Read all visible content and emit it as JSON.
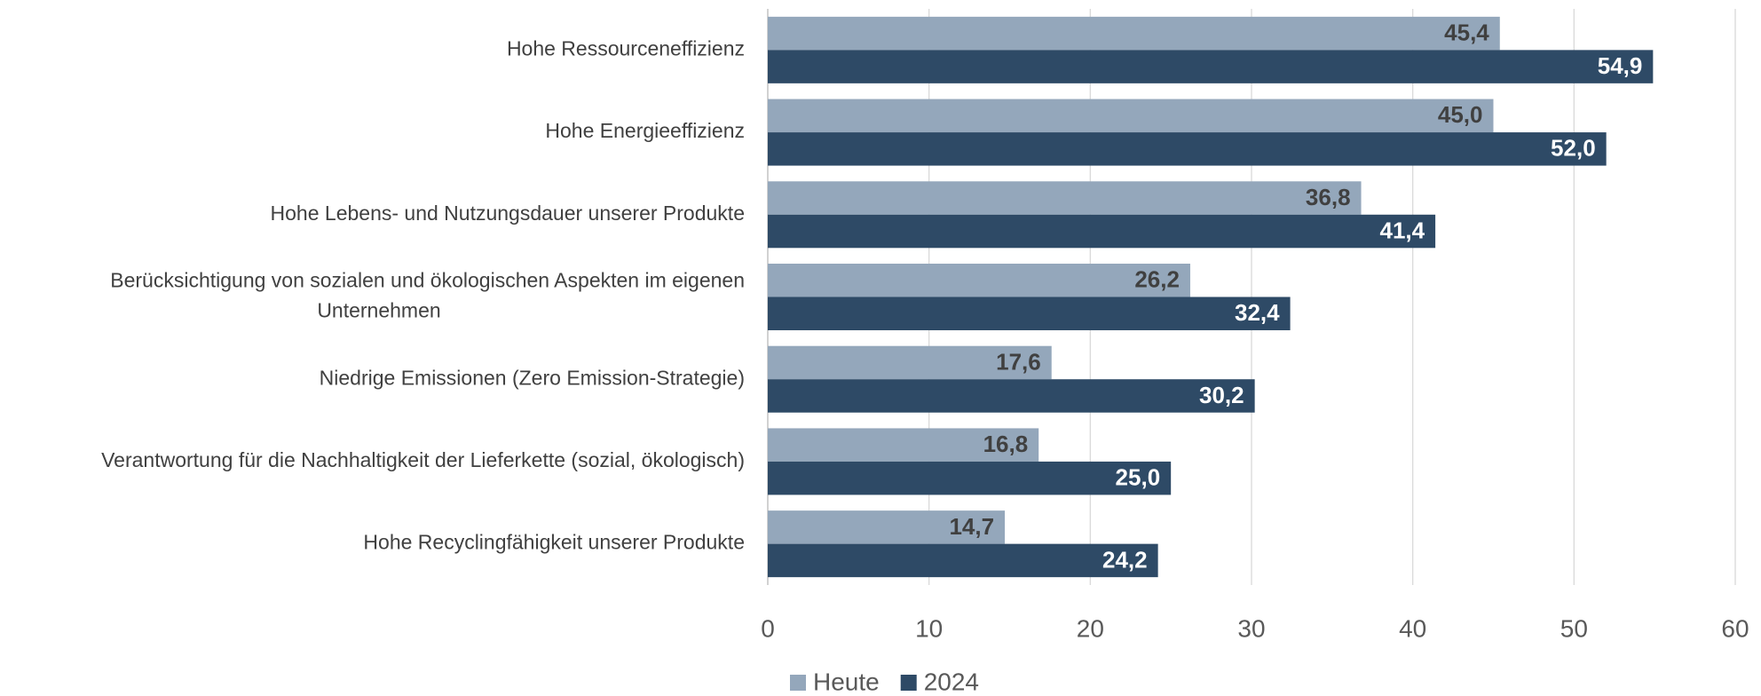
{
  "chart_data": {
    "type": "hbar",
    "categories": [
      "Hohe Ressourceneffizienz",
      "Hohe Energieeffizienz",
      "Hohe Lebens- und Nutzungsdauer unserer Produkte",
      "Berücksichtigung von sozialen und ökologischen Aspekten im eigenen Unternehmen",
      "Niedrige Emissionen (Zero Emission-Strategie)",
      "Verantwortung für die Nachhaltigkeit der Lieferkette (sozial, ökologisch)",
      "Hohe Recyclingfähigkeit unserer Produkte"
    ],
    "series": [
      {
        "name": "Heute",
        "color": "#94a7bb",
        "values": [
          45.4,
          45.0,
          36.8,
          26.2,
          17.6,
          16.8,
          14.7
        ],
        "value_labels": [
          "45,4",
          "45,0",
          "36,8",
          "26,2",
          "17,6",
          "16,8",
          "14,7"
        ]
      },
      {
        "name": "2024",
        "color": "#2e4a66",
        "values": [
          54.9,
          52.0,
          41.4,
          32.4,
          30.2,
          25.0,
          24.2
        ],
        "value_labels": [
          "54,9",
          "52,0",
          "41,4",
          "32,4",
          "30,2",
          "25,0",
          "24,2"
        ]
      }
    ],
    "xlim": [
      0,
      60
    ],
    "xticks": [
      0,
      10,
      20,
      30,
      40,
      50,
      60
    ],
    "grid": true,
    "legend": "bottom"
  }
}
